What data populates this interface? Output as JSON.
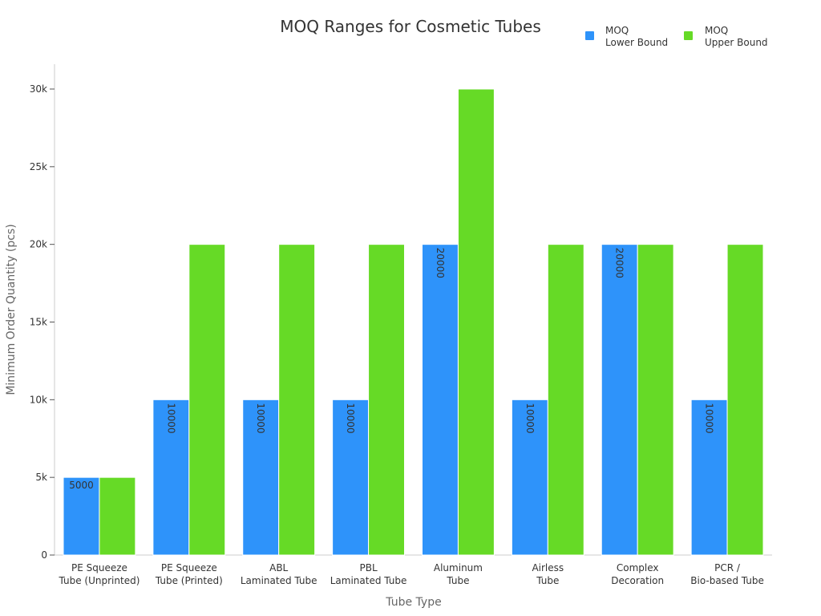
{
  "chart_data": {
    "type": "bar",
    "title": "MOQ Ranges for Cosmetic Tubes",
    "xlabel": "Tube Type",
    "ylabel": "Minimum Order Quantity (pcs)",
    "categories": [
      [
        "PE Squeeze",
        "Tube (Unprinted)"
      ],
      [
        "PE Squeeze",
        "Tube (Printed)"
      ],
      [
        "ABL",
        "Laminated Tube"
      ],
      [
        "PBL",
        "Laminated Tube"
      ],
      [
        "Aluminum",
        "Tube"
      ],
      [
        "Airless",
        "Tube"
      ],
      [
        "Complex",
        "Decoration"
      ],
      [
        "PCR /",
        "Bio-based Tube"
      ]
    ],
    "series": [
      {
        "name": [
          "MOQ",
          "Lower Bound"
        ],
        "color": "#2E93FA",
        "values": [
          5000,
          10000,
          10000,
          10000,
          20000,
          10000,
          20000,
          10000
        ],
        "data_labels": [
          "5000",
          "10000",
          "10000",
          "10000",
          "20000",
          "10000",
          "20000",
          "10000"
        ]
      },
      {
        "name": [
          "MOQ",
          "Upper Bound"
        ],
        "color": "#66DA26",
        "values": [
          5000,
          20000,
          20000,
          20000,
          30000,
          20000,
          20000,
          20000
        ]
      }
    ],
    "ylim": [
      0,
      30000
    ],
    "yticks": [
      {
        "value": 0,
        "label": "0"
      },
      {
        "value": 5000,
        "label": "5k"
      },
      {
        "value": 10000,
        "label": "10k"
      },
      {
        "value": 15000,
        "label": "15k"
      },
      {
        "value": 20000,
        "label": "20k"
      },
      {
        "value": 25000,
        "label": "25k"
      },
      {
        "value": 30000,
        "label": "30k"
      }
    ],
    "grid": false,
    "legend_position": "top-right"
  }
}
